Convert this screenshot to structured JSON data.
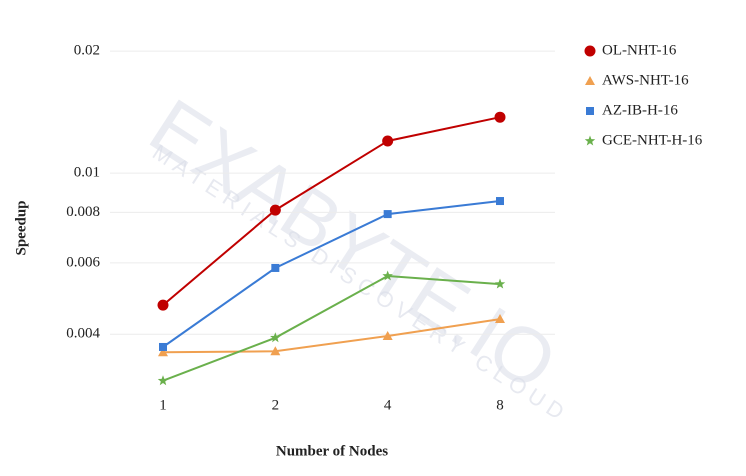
{
  "chart_data": {
    "type": "line",
    "x_label": "Number of Nodes",
    "y_label": "Speedup",
    "x": [
      1,
      2,
      4,
      8
    ],
    "xscale": "log",
    "xlim": [
      1,
      8
    ],
    "xticks": [
      1,
      2,
      4,
      8
    ],
    "yscale": "log",
    "ylim": [
      0.003,
      0.021
    ],
    "yticks": [
      0.004,
      0.006,
      0.008,
      0.01,
      0.02
    ],
    "grid": true,
    "legend": "right",
    "watermark": "EXABYTE.IO",
    "watermark_subtitle": "MATERIALS DISCOVERY CLOUD",
    "series": [
      {
        "name": "OL-NHT-16",
        "color": "#c00000",
        "marker": "circle",
        "values": [
          0.00472,
          0.0081,
          0.012,
          0.01374
        ]
      },
      {
        "name": "AWS-NHT-16",
        "color": "#f0a050",
        "marker": "triangle",
        "values": [
          0.00361,
          0.00363,
          0.00396,
          0.00436
        ]
      },
      {
        "name": "AZ-IB-H-16",
        "color": "#3a7bd5",
        "marker": "square",
        "values": [
          0.00372,
          0.00583,
          0.00792,
          0.00853
        ]
      },
      {
        "name": "GCE-NHT-H-16",
        "color": "#6ab04c",
        "marker": "star",
        "values": [
          0.00307,
          0.00392,
          0.00557,
          0.00532
        ]
      }
    ]
  }
}
